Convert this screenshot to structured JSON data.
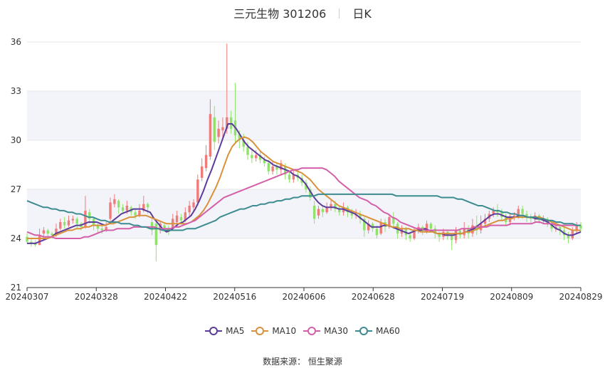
{
  "header": {
    "title": "三元生物 301206",
    "period": "日K"
  },
  "footer": {
    "source": "数据来源：  恒生聚源"
  },
  "colors": {
    "up": "#f07b7b",
    "down": "#8fe36a",
    "ma5": "#5b3c9a",
    "ma10": "#d9913b",
    "ma30": "#d45fa8",
    "ma60": "#3b8b8f",
    "grid": "#e6e6e6",
    "band": "#f3f4fa"
  },
  "chart_data": {
    "type": "candlestick",
    "ylim": [
      21,
      36
    ],
    "yticks": [
      "21",
      "24",
      "27",
      "30",
      "33",
      "36"
    ],
    "xticks": [
      "20240307",
      "20240328",
      "20240422",
      "20240516",
      "20240606",
      "20240628",
      "20240719",
      "20240809",
      "20240829"
    ],
    "legend": [
      "MA5",
      "MA10",
      "MA30",
      "MA60"
    ],
    "legend_position": "bottom",
    "candles": [
      [
        24.1,
        23.8,
        24.3,
        23.7
      ],
      [
        23.8,
        23.7,
        24.0,
        23.5
      ],
      [
        23.7,
        23.6,
        23.9,
        23.5
      ],
      [
        23.6,
        24.2,
        24.6,
        23.6
      ],
      [
        24.3,
        24.5,
        24.7,
        24.1
      ],
      [
        24.5,
        24.3,
        24.6,
        24.1
      ],
      [
        24.3,
        24.2,
        24.4,
        24.0
      ],
      [
        24.2,
        24.6,
        24.9,
        24.1
      ],
      [
        24.6,
        25.0,
        25.2,
        24.5
      ],
      [
        25.0,
        24.8,
        25.3,
        24.6
      ],
      [
        24.8,
        25.1,
        25.4,
        24.7
      ],
      [
        25.1,
        25.2,
        25.4,
        24.9
      ],
      [
        25.2,
        24.9,
        25.3,
        24.6
      ],
      [
        24.9,
        24.7,
        25.0,
        24.5
      ],
      [
        24.7,
        25.7,
        26.6,
        24.6
      ],
      [
        25.6,
        25.2,
        25.8,
        24.9
      ],
      [
        25.2,
        24.8,
        25.3,
        24.5
      ],
      [
        24.8,
        24.6,
        24.9,
        24.3
      ],
      [
        24.6,
        24.5,
        24.8,
        24.3
      ],
      [
        24.5,
        24.7,
        25.0,
        24.4
      ],
      [
        25.2,
        26.2,
        26.5,
        25.0
      ],
      [
        26.1,
        26.4,
        26.7,
        25.9
      ],
      [
        26.3,
        25.9,
        26.4,
        25.5
      ],
      [
        25.9,
        25.7,
        26.1,
        25.5
      ],
      [
        25.7,
        26.0,
        26.3,
        25.5
      ],
      [
        25.9,
        25.6,
        26.0,
        25.4
      ],
      [
        25.6,
        25.4,
        25.8,
        25.2
      ],
      [
        25.4,
        25.7,
        26.1,
        25.3
      ],
      [
        25.7,
        26.1,
        26.6,
        25.6
      ],
      [
        26.1,
        25.9,
        26.2,
        25.5
      ],
      [
        25.0,
        24.5,
        25.3,
        24.2
      ],
      [
        24.9,
        23.6,
        25.1,
        22.6
      ],
      [
        24.5,
        24.9,
        25.1,
        24.3
      ],
      [
        24.8,
        24.6,
        24.9,
        24.4
      ],
      [
        24.6,
        24.4,
        24.8,
        24.2
      ],
      [
        24.6,
        25.2,
        25.5,
        24.5
      ],
      [
        25.0,
        25.4,
        25.7,
        24.9
      ],
      [
        25.3,
        25.1,
        25.5,
        24.9
      ],
      [
        25.1,
        25.6,
        25.9,
        25.0
      ],
      [
        25.6,
        26.0,
        26.3,
        25.4
      ],
      [
        25.9,
        26.2,
        26.4,
        25.7
      ],
      [
        26.2,
        27.6,
        27.9,
        26.0
      ],
      [
        27.7,
        28.4,
        28.9,
        27.5
      ],
      [
        28.3,
        29.1,
        29.7,
        28.1
      ],
      [
        29.0,
        31.6,
        32.5,
        28.8
      ],
      [
        31.4,
        29.9,
        32.1,
        29.4
      ],
      [
        30.2,
        30.7,
        31.2,
        29.8
      ],
      [
        30.6,
        30.8,
        31.4,
        30.1
      ],
      [
        30.7,
        31.4,
        35.9,
        30.4
      ],
      [
        31.4,
        30.7,
        31.8,
        30.4
      ],
      [
        31.2,
        30.3,
        33.5,
        29.8
      ],
      [
        30.4,
        30.0,
        30.6,
        29.5
      ],
      [
        30.0,
        29.6,
        30.4,
        29.3
      ],
      [
        29.6,
        29.1,
        29.9,
        28.8
      ],
      [
        29.1,
        28.9,
        29.4,
        28.6
      ],
      [
        28.9,
        29.1,
        29.4,
        28.7
      ],
      [
        29.1,
        28.8,
        29.3,
        28.6
      ],
      [
        28.8,
        28.6,
        29.0,
        28.4
      ],
      [
        28.6,
        28.1,
        28.8,
        27.9
      ],
      [
        28.1,
        28.4,
        28.7,
        27.9
      ],
      [
        28.4,
        28.2,
        28.6,
        27.9
      ],
      [
        28.2,
        28.6,
        28.8,
        27.9
      ],
      [
        28.4,
        27.9,
        28.6,
        27.6
      ],
      [
        27.9,
        27.6,
        28.1,
        27.4
      ],
      [
        27.6,
        27.9,
        28.2,
        27.4
      ],
      [
        27.9,
        27.7,
        28.2,
        27.5
      ],
      [
        27.7,
        27.4,
        27.9,
        27.2
      ],
      [
        27.4,
        27.0,
        27.6,
        26.8
      ],
      [
        27.0,
        26.5,
        27.2,
        26.3
      ],
      [
        26.0,
        25.2,
        26.3,
        24.9
      ],
      [
        25.4,
        25.8,
        26.0,
        25.2
      ],
      [
        25.8,
        25.6,
        26.0,
        25.3
      ],
      [
        25.6,
        25.9,
        26.2,
        25.5
      ],
      [
        25.9,
        26.1,
        26.4,
        25.7
      ],
      [
        26.1,
        25.8,
        26.3,
        25.6
      ],
      [
        25.8,
        25.6,
        26.0,
        25.4
      ],
      [
        25.6,
        25.9,
        26.2,
        25.4
      ],
      [
        25.9,
        25.6,
        26.0,
        25.3
      ],
      [
        25.6,
        25.4,
        25.8,
        25.2
      ],
      [
        25.4,
        25.5,
        25.8,
        25.2
      ],
      [
        25.5,
        25.2,
        25.7,
        24.9
      ],
      [
        25.2,
        24.5,
        25.3,
        24.1
      ],
      [
        24.5,
        24.9,
        25.1,
        24.3
      ],
      [
        24.9,
        24.6,
        25.0,
        24.4
      ],
      [
        24.6,
        24.2,
        24.8,
        24.0
      ],
      [
        24.3,
        25.0,
        25.2,
        24.2
      ],
      [
        25.0,
        24.7,
        25.2,
        24.4
      ],
      [
        24.7,
        25.3,
        25.5,
        24.6
      ],
      [
        25.3,
        24.9,
        25.6,
        24.6
      ],
      [
        24.9,
        24.3,
        25.0,
        24.0
      ],
      [
        24.3,
        24.6,
        24.8,
        24.1
      ],
      [
        24.6,
        24.2,
        24.7,
        23.9
      ],
      [
        24.2,
        24.0,
        24.4,
        23.8
      ],
      [
        24.0,
        24.5,
        24.7,
        23.9
      ],
      [
        24.5,
        24.7,
        24.9,
        24.3
      ],
      [
        24.7,
        24.4,
        24.8,
        24.2
      ],
      [
        24.4,
        24.9,
        25.1,
        24.3
      ],
      [
        24.9,
        24.6,
        25.0,
        24.4
      ],
      [
        24.6,
        24.3,
        24.8,
        24.0
      ],
      [
        24.3,
        24.1,
        24.4,
        23.8
      ],
      [
        24.1,
        24.4,
        24.6,
        23.9
      ],
      [
        24.4,
        24.2,
        24.5,
        23.9
      ],
      [
        24.2,
        23.9,
        24.3,
        23.3
      ],
      [
        23.9,
        24.5,
        24.7,
        23.7
      ],
      [
        24.5,
        24.2,
        24.6,
        24.0
      ],
      [
        24.2,
        24.6,
        25.0,
        24.0
      ],
      [
        24.6,
        24.3,
        24.8,
        24.0
      ],
      [
        24.3,
        24.8,
        25.2,
        24.1
      ],
      [
        24.8,
        24.5,
        25.4,
        24.2
      ],
      [
        24.5,
        24.9,
        25.4,
        24.3
      ],
      [
        24.9,
        25.2,
        25.5,
        24.8
      ],
      [
        25.2,
        25.5,
        25.7,
        25.0
      ],
      [
        25.5,
        25.7,
        25.9,
        25.3
      ],
      [
        25.7,
        25.6,
        26.1,
        25.3
      ],
      [
        25.6,
        25.3,
        25.8,
        25.1
      ],
      [
        25.3,
        25.0,
        25.5,
        24.8
      ],
      [
        25.0,
        25.3,
        25.5,
        24.8
      ],
      [
        25.3,
        25.4,
        25.6,
        25.1
      ],
      [
        25.4,
        25.8,
        26.0,
        25.2
      ],
      [
        25.8,
        25.5,
        26.0,
        25.2
      ],
      [
        25.5,
        25.3,
        25.7,
        25.0
      ],
      [
        25.3,
        25.2,
        25.5,
        24.9
      ],
      [
        25.2,
        25.4,
        25.6,
        25.0
      ],
      [
        25.4,
        25.1,
        25.5,
        24.9
      ],
      [
        25.1,
        25.2,
        25.4,
        24.9
      ],
      [
        25.2,
        24.9,
        25.3,
        24.7
      ],
      [
        24.9,
        24.6,
        25.0,
        24.4
      ],
      [
        24.6,
        24.7,
        24.9,
        24.4
      ],
      [
        24.7,
        24.5,
        24.8,
        24.2
      ],
      [
        24.5,
        24.2,
        24.7,
        23.9
      ],
      [
        24.2,
        24.0,
        24.4,
        23.7
      ],
      [
        24.0,
        24.5,
        24.7,
        23.9
      ],
      [
        24.5,
        24.8,
        25.0,
        24.3
      ],
      [
        24.8,
        24.6,
        25.0,
        24.4
      ]
    ],
    "series": [
      {
        "name": "MA5",
        "values": [
          23.7,
          23.7,
          23.7,
          23.8,
          23.9,
          24.0,
          24.1,
          24.3,
          24.4,
          24.5,
          24.6,
          24.7,
          24.8,
          24.8,
          24.9,
          25.0,
          25.0,
          25.0,
          24.9,
          24.8,
          24.9,
          25.1,
          25.3,
          25.5,
          25.6,
          25.7,
          25.8,
          25.8,
          25.8,
          25.7,
          25.6,
          25.2,
          24.9,
          24.6,
          24.4,
          24.5,
          24.7,
          24.9,
          25.0,
          25.2,
          25.4,
          25.8,
          26.3,
          26.9,
          27.6,
          28.2,
          28.9,
          29.6,
          30.3,
          31.0,
          31.0,
          30.7,
          30.3,
          29.9,
          29.6,
          29.4,
          29.2,
          29.0,
          28.8,
          28.7,
          28.5,
          28.4,
          28.3,
          28.2,
          28.1,
          27.9,
          27.8,
          27.6,
          27.3,
          26.9,
          26.5,
          26.2,
          26.0,
          25.9,
          25.9,
          25.9,
          25.8,
          25.8,
          25.7,
          25.6,
          25.5,
          25.3,
          25.1,
          24.9,
          24.7,
          24.7,
          24.7,
          24.8,
          24.8,
          24.7,
          24.6,
          24.5,
          24.4,
          24.3,
          24.4,
          24.5,
          24.5,
          24.6,
          24.5,
          24.4,
          24.3,
          24.3,
          24.2,
          24.2,
          24.2,
          24.3,
          24.3,
          24.4,
          24.5,
          24.6,
          24.8,
          25.0,
          25.2,
          25.4,
          25.5,
          25.5,
          25.4,
          25.3,
          25.3,
          25.3,
          25.4,
          25.4,
          25.3,
          25.3,
          25.2,
          25.2,
          25.1,
          25.0,
          24.8,
          24.6,
          24.5,
          24.3,
          24.2,
          24.2,
          24.3,
          24.4
        ]
      },
      {
        "name": "MA10",
        "values": [
          24.0,
          24.0,
          24.0,
          24.0,
          24.0,
          24.0,
          24.1,
          24.2,
          24.3,
          24.4,
          24.5,
          24.5,
          24.6,
          24.6,
          24.7,
          24.7,
          24.8,
          24.8,
          24.8,
          24.8,
          24.9,
          24.9,
          25.0,
          25.1,
          25.2,
          25.3,
          25.3,
          25.4,
          25.4,
          25.4,
          25.3,
          25.2,
          25.1,
          25.0,
          24.9,
          24.9,
          24.9,
          24.9,
          24.9,
          24.9,
          25.0,
          25.2,
          25.4,
          25.7,
          26.1,
          26.6,
          27.1,
          27.7,
          28.4,
          29.1,
          29.6,
          29.9,
          30.1,
          30.2,
          30.1,
          29.9,
          29.6,
          29.3,
          29.1,
          28.9,
          28.7,
          28.6,
          28.5,
          28.4,
          28.3,
          28.2,
          28.1,
          28.0,
          27.8,
          27.6,
          27.3,
          27.0,
          26.8,
          26.6,
          26.4,
          26.2,
          26.0,
          25.9,
          25.8,
          25.7,
          25.6,
          25.5,
          25.4,
          25.3,
          25.2,
          25.1,
          25.0,
          24.9,
          24.8,
          24.7,
          24.7,
          24.6,
          24.6,
          24.6,
          24.5,
          24.5,
          24.4,
          24.4,
          24.4,
          24.4,
          24.3,
          24.3,
          24.3,
          24.3,
          24.3,
          24.3,
          24.3,
          24.4,
          24.4,
          24.5,
          24.6,
          24.7,
          24.8,
          24.9,
          25.0,
          25.1,
          25.1,
          25.2,
          25.2,
          25.3,
          25.3,
          25.3,
          25.3,
          25.3,
          25.3,
          25.3,
          25.2,
          25.1,
          25.0,
          24.9,
          24.8,
          24.7,
          24.6,
          24.5,
          24.5,
          24.5
        ]
      },
      {
        "name": "MA30",
        "values": [
          24.4,
          24.3,
          24.2,
          24.2,
          24.1,
          24.1,
          24.1,
          24.0,
          24.0,
          24.0,
          24.0,
          24.0,
          24.0,
          24.0,
          24.1,
          24.1,
          24.2,
          24.3,
          24.4,
          24.5,
          24.5,
          24.5,
          24.6,
          24.6,
          24.6,
          24.6,
          24.7,
          24.7,
          24.7,
          24.7,
          24.7,
          24.7,
          24.6,
          24.6,
          24.6,
          24.6,
          24.7,
          24.7,
          24.8,
          24.9,
          25.0,
          25.1,
          25.3,
          25.5,
          25.7,
          25.9,
          26.1,
          26.3,
          26.5,
          26.6,
          26.7,
          26.8,
          26.9,
          27.0,
          27.1,
          27.2,
          27.3,
          27.4,
          27.5,
          27.6,
          27.7,
          27.8,
          27.9,
          28.0,
          28.1,
          28.2,
          28.2,
          28.3,
          28.3,
          28.3,
          28.3,
          28.3,
          28.3,
          28.2,
          28.0,
          27.8,
          27.5,
          27.3,
          27.1,
          26.9,
          26.7,
          26.5,
          26.4,
          26.3,
          26.1,
          26.0,
          25.8,
          25.6,
          25.5,
          25.3,
          25.2,
          25.0,
          24.9,
          24.8,
          24.7,
          24.6,
          24.6,
          24.5,
          24.5,
          24.5,
          24.5,
          24.5,
          24.5,
          24.5,
          24.5,
          24.5,
          24.6,
          24.6,
          24.6,
          24.7,
          24.7,
          24.7,
          24.7,
          24.8,
          24.8,
          24.8,
          24.8,
          24.8,
          24.9,
          24.9,
          24.9,
          24.9,
          24.9,
          24.9,
          25.0,
          25.0,
          24.9,
          24.9,
          24.9,
          24.8,
          24.8,
          24.8,
          24.8,
          24.8,
          24.8,
          24.8
        ]
      },
      {
        "name": "MA60",
        "values": [
          26.3,
          26.2,
          26.1,
          26.0,
          25.9,
          25.9,
          25.8,
          25.8,
          25.7,
          25.7,
          25.6,
          25.6,
          25.5,
          25.5,
          25.4,
          25.3,
          25.3,
          25.2,
          25.1,
          25.1,
          25.0,
          25.0,
          25.0,
          24.9,
          24.9,
          24.9,
          24.8,
          24.8,
          24.7,
          24.7,
          24.6,
          24.6,
          24.6,
          24.5,
          24.5,
          24.5,
          24.5,
          24.5,
          24.5,
          24.6,
          24.6,
          24.6,
          24.7,
          24.8,
          24.9,
          25.0,
          25.1,
          25.3,
          25.4,
          25.5,
          25.6,
          25.7,
          25.8,
          25.8,
          25.9,
          26.0,
          26.0,
          26.1,
          26.1,
          26.2,
          26.2,
          26.3,
          26.3,
          26.4,
          26.4,
          26.5,
          26.5,
          26.6,
          26.6,
          26.6,
          26.6,
          26.7,
          26.7,
          26.7,
          26.7,
          26.7,
          26.7,
          26.7,
          26.7,
          26.7,
          26.7,
          26.7,
          26.7,
          26.7,
          26.7,
          26.7,
          26.7,
          26.7,
          26.7,
          26.7,
          26.6,
          26.6,
          26.6,
          26.6,
          26.6,
          26.6,
          26.6,
          26.6,
          26.6,
          26.6,
          26.6,
          26.5,
          26.5,
          26.5,
          26.5,
          26.4,
          26.4,
          26.3,
          26.2,
          26.1,
          26.0,
          26.0,
          25.9,
          25.8,
          25.7,
          25.7,
          25.6,
          25.6,
          25.5,
          25.5,
          25.4,
          25.4,
          25.3,
          25.3,
          25.3,
          25.2,
          25.2,
          25.1,
          25.1,
          25.0,
          25.0,
          24.9,
          24.9,
          24.9,
          24.8,
          24.8
        ]
      }
    ]
  }
}
